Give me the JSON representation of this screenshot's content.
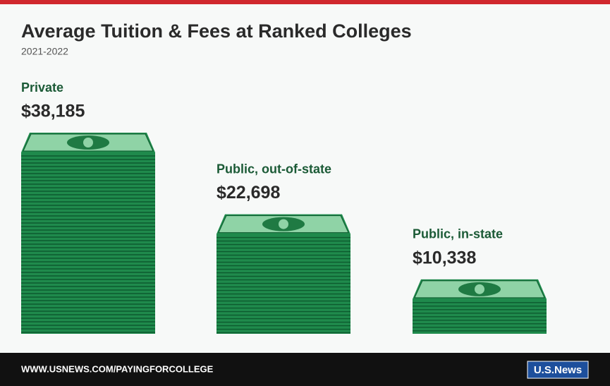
{
  "chart_data": {
    "type": "bar",
    "title": "Average Tuition & Fees at Ranked Colleges",
    "subtitle": "2021-2022",
    "categories": [
      "Private",
      "Public, out-of-state",
      "Public, in-state"
    ],
    "values": [
      38185,
      22698,
      10338
    ],
    "value_labels": [
      "$38,185",
      "$22,698",
      "$10,338"
    ],
    "color": "#1f8a4c"
  },
  "footer": {
    "url": "WWW.USNEWS.COM/PAYINGFORCOLLEGE",
    "logo": "U.S.News"
  }
}
